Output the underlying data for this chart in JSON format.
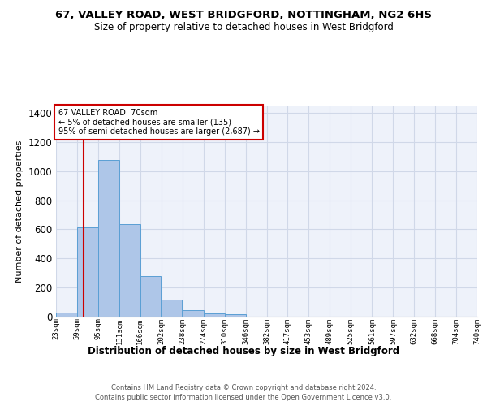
{
  "title_line1": "67, VALLEY ROAD, WEST BRIDGFORD, NOTTINGHAM, NG2 6HS",
  "title_line2": "Size of property relative to detached houses in West Bridgford",
  "xlabel": "Distribution of detached houses by size in West Bridgford",
  "ylabel": "Number of detached properties",
  "footnote1": "Contains HM Land Registry data © Crown copyright and database right 2024.",
  "footnote2": "Contains public sector information licensed under the Open Government Licence v3.0.",
  "annotation_title": "67 VALLEY ROAD: 70sqm",
  "annotation_line1": "← 5% of detached houses are smaller (135)",
  "annotation_line2": "95% of semi-detached houses are larger (2,687) →",
  "bar_bins": [
    23,
    59,
    95,
    131,
    166,
    202,
    238,
    274,
    310,
    346,
    382,
    417,
    453,
    489,
    525,
    561,
    597,
    632,
    668,
    704,
    740
  ],
  "bar_heights": [
    30,
    615,
    1075,
    635,
    280,
    115,
    45,
    25,
    15,
    0,
    0,
    0,
    0,
    0,
    0,
    0,
    0,
    0,
    0,
    0
  ],
  "bar_color": "#aec6e8",
  "bar_edge_color": "#5a9fd4",
  "vline_x": 70,
  "vline_color": "#cc0000",
  "vline_linewidth": 1.5,
  "annotation_box_color": "#cc0000",
  "ylim": [
    0,
    1450
  ],
  "yticks": [
    0,
    200,
    400,
    600,
    800,
    1000,
    1200,
    1400
  ],
  "grid_color": "#d0d8e8",
  "background_color": "#eef2fa",
  "fig_background": "#ffffff"
}
